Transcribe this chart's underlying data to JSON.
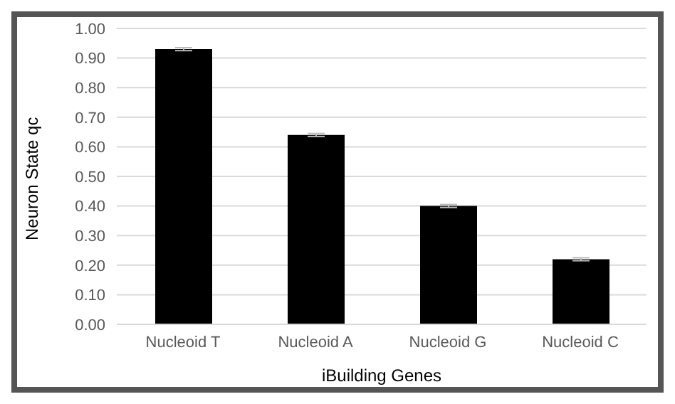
{
  "chart_data": {
    "type": "bar",
    "xlabel": "iBuilding Genes",
    "ylabel": "Neuron State qc",
    "categories": [
      "Nucleoid T",
      "Nucleoid A",
      "Nucleoid G",
      "Nucleoid C"
    ],
    "values": [
      0.93,
      0.64,
      0.4,
      0.22
    ],
    "errors": [
      0.005,
      0.005,
      0.005,
      0.005
    ],
    "color": "#000000",
    "ylim": [
      0,
      1
    ],
    "yticks": [
      {
        "value": 0,
        "label": "0.00"
      },
      {
        "value": 0.1,
        "label": "0.10"
      },
      {
        "value": 0.2,
        "label": "0.20"
      },
      {
        "value": 0.3,
        "label": "0.30"
      },
      {
        "value": 0.4,
        "label": "0.40"
      },
      {
        "value": 0.5,
        "label": "0.50"
      },
      {
        "value": 0.6,
        "label": "0.60"
      },
      {
        "value": 0.7,
        "label": "0.70"
      },
      {
        "value": 0.8,
        "label": "0.80"
      },
      {
        "value": 0.9,
        "label": "0.90"
      },
      {
        "value": 1,
        "label": "1.00"
      }
    ],
    "grid": "y"
  }
}
